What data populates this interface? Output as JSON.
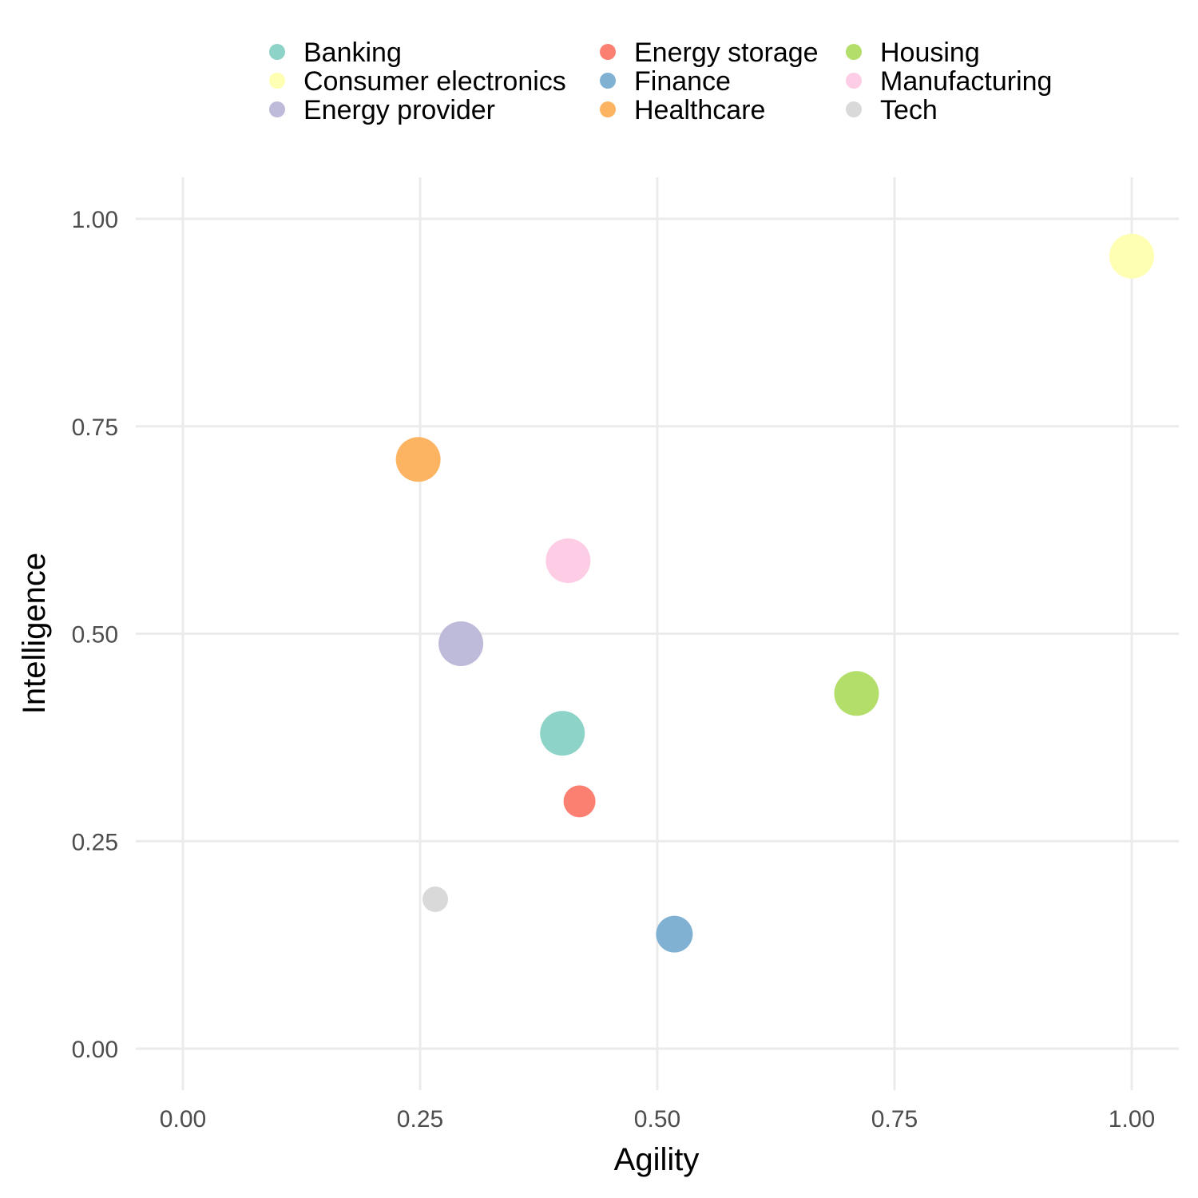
{
  "chart_data": {
    "type": "scatter",
    "xlabel": "Agility",
    "ylabel": "Intelligence",
    "xlim": [
      -0.05,
      1.05
    ],
    "ylim": [
      -0.05,
      1.05
    ],
    "x_ticks": [
      0.0,
      0.25,
      0.5,
      0.75,
      1.0
    ],
    "x_tick_labels": [
      "0.00",
      "0.25",
      "0.50",
      "0.75",
      "1.00"
    ],
    "y_ticks": [
      0.0,
      0.25,
      0.5,
      0.75,
      1.0
    ],
    "y_tick_labels": [
      "0.00",
      "0.25",
      "0.50",
      "0.75",
      "1.00"
    ],
    "grid": true,
    "legend_position": "top",
    "series": [
      {
        "name": "Banking",
        "color": "#8DD3C7",
        "x": 0.4,
        "y": 0.38,
        "size": 0.85
      },
      {
        "name": "Consumer electronics",
        "color": "#FFFFB3",
        "x": 1.0,
        "y": 0.955,
        "size": 0.85
      },
      {
        "name": "Energy provider",
        "color": "#BEBADA",
        "x": 0.293,
        "y": 0.488,
        "size": 0.85
      },
      {
        "name": "Energy storage",
        "color": "#FB8072",
        "x": 0.418,
        "y": 0.298,
        "size": 0.45
      },
      {
        "name": "Finance",
        "color": "#80B1D3",
        "x": 0.518,
        "y": 0.138,
        "size": 0.6
      },
      {
        "name": "Healthcare",
        "color": "#FDB462",
        "x": 0.248,
        "y": 0.71,
        "size": 0.85
      },
      {
        "name": "Housing",
        "color": "#B3DE69",
        "x": 0.71,
        "y": 0.428,
        "size": 0.85
      },
      {
        "name": "Manufacturing",
        "color": "#FCCDE5",
        "x": 0.406,
        "y": 0.588,
        "size": 0.85
      },
      {
        "name": "Tech",
        "color": "#D9D9D9",
        "x": 0.266,
        "y": 0.18,
        "size": 0.25
      }
    ]
  }
}
